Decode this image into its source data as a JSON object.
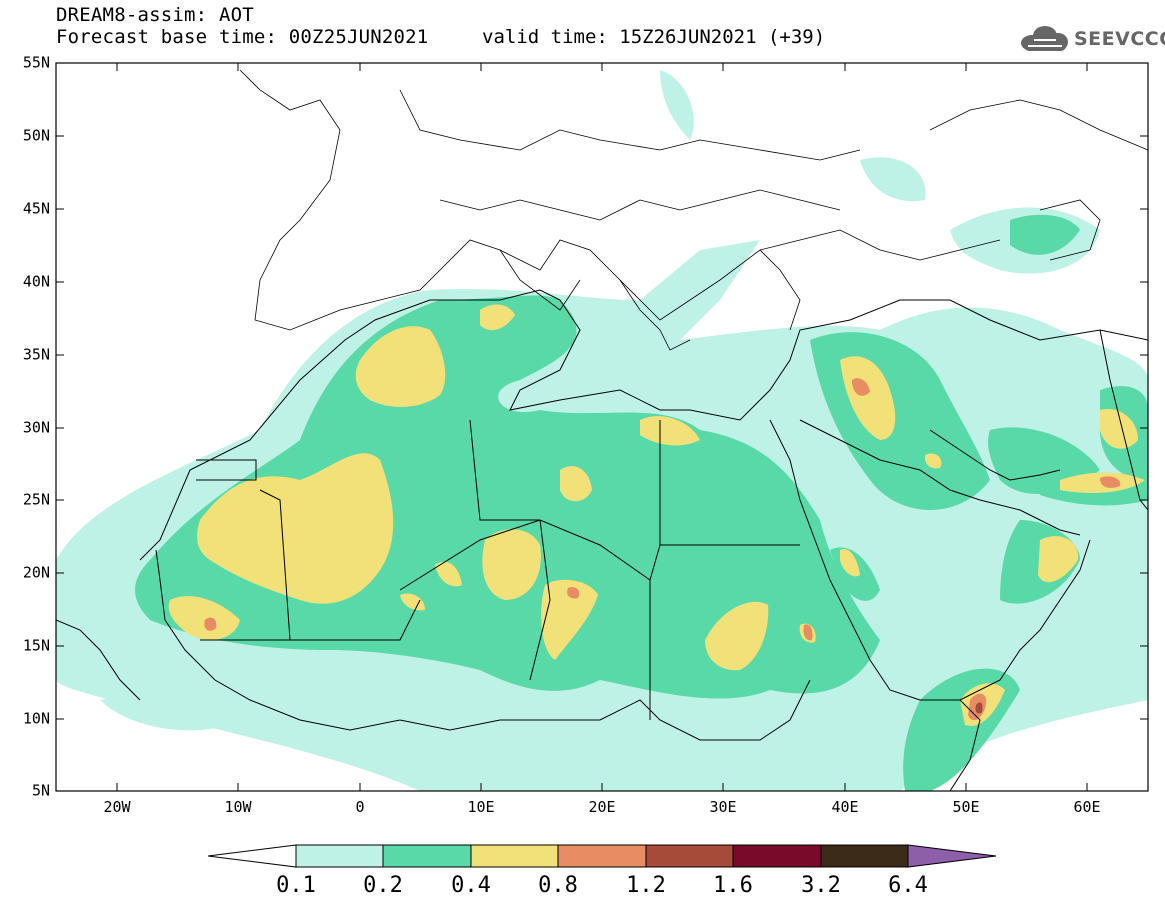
{
  "header": {
    "title_line1": "DREAM8-assim: AOT",
    "base_time": "Forecast base time: 00Z25JUN2021",
    "valid_time": "valid time: 15Z26JUN2021 (+39)"
  },
  "logo": {
    "text": "SEEVCCC",
    "icon": "cloud-icon"
  },
  "axes": {
    "lat_labels": [
      "55N",
      "50N",
      "45N",
      "40N",
      "35N",
      "30N",
      "25N",
      "20N",
      "15N",
      "10N",
      "5N"
    ],
    "lon_labels": [
      "20W",
      "10W",
      "0",
      "10E",
      "20E",
      "30E",
      "40E",
      "50E",
      "60E"
    ],
    "lon_range": [
      -25,
      65
    ],
    "lat_range": [
      5,
      55
    ]
  },
  "colorbar": {
    "labels": [
      "0.1",
      "0.2",
      "0.4",
      "0.8",
      "1.2",
      "1.6",
      "3.2",
      "6.4"
    ],
    "colors": [
      "#ffffff",
      "#bff2e6",
      "#5ad9a8",
      "#f2e178",
      "#e88c63",
      "#a64b3a",
      "#7a0a2a",
      "#3d2b1a",
      "#8c5fa8"
    ]
  }
}
